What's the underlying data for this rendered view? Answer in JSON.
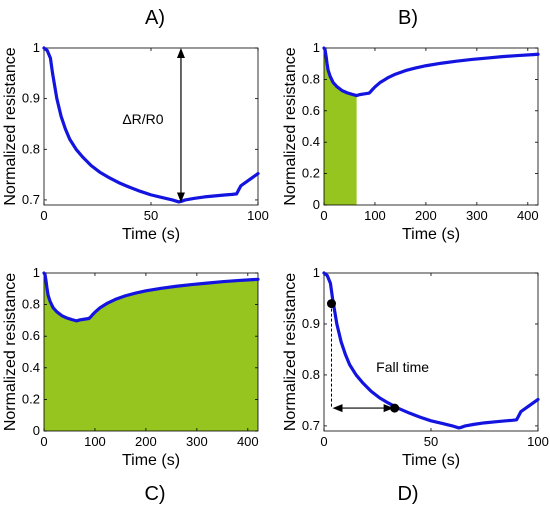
{
  "colors": {
    "curve": "#1414e0",
    "fill": "#97c520",
    "axes": "#000000"
  },
  "chart_data": [
    {
      "panel": "A)",
      "type": "line",
      "xlabel": "Time (s)",
      "ylabel": "Normalized resistance",
      "xlim": [
        0,
        100
      ],
      "ylim": [
        0.69,
        1.0
      ],
      "xticks": [
        0,
        50,
        100
      ],
      "yticks": [
        0.7,
        0.8,
        0.9,
        1
      ],
      "ytick_labels": [
        "0.7",
        "0.8",
        "0.9",
        "1"
      ],
      "x": [
        0,
        1.5,
        3,
        4,
        6,
        8,
        10,
        12,
        15,
        18,
        22,
        26,
        30,
        35,
        40,
        45,
        50,
        55,
        60,
        63,
        64,
        66,
        70,
        75,
        80,
        85,
        88,
        90,
        91,
        92,
        95,
        100
      ],
      "y": [
        1.0,
        0.995,
        0.98,
        0.95,
        0.9,
        0.865,
        0.84,
        0.82,
        0.8,
        0.785,
        0.768,
        0.755,
        0.745,
        0.734,
        0.725,
        0.717,
        0.71,
        0.705,
        0.7,
        0.696,
        0.697,
        0.7,
        0.703,
        0.706,
        0.708,
        0.71,
        0.711,
        0.712,
        0.72,
        0.728,
        0.737,
        0.752
      ],
      "annotation": {
        "text": "ΔR/R0",
        "arrow_x": 64,
        "arrow_y": [
          0.695,
          1.0
        ]
      }
    },
    {
      "panel": "B)",
      "type": "area",
      "xlabel": "Time (s)",
      "ylabel": "Normalized resistance",
      "xlim": [
        0,
        420
      ],
      "ylim": [
        0,
        1.0
      ],
      "xticks": [
        0,
        100,
        200,
        300,
        400
      ],
      "yticks": [
        0,
        0.2,
        0.4,
        0.6,
        0.8,
        1
      ],
      "ytick_labels": [
        "0",
        "0.2",
        "0.4",
        "0.6",
        "0.8",
        "1"
      ],
      "x": [
        0,
        2,
        4,
        6,
        8,
        12,
        18,
        25,
        35,
        45,
        55,
        64,
        70,
        80,
        88,
        91,
        95,
        100,
        110,
        125,
        140,
        160,
        180,
        200,
        230,
        260,
        290,
        320,
        350,
        380,
        410,
        420
      ],
      "y": [
        1.0,
        0.99,
        0.95,
        0.9,
        0.86,
        0.82,
        0.78,
        0.755,
        0.73,
        0.715,
        0.705,
        0.697,
        0.703,
        0.708,
        0.712,
        0.72,
        0.735,
        0.752,
        0.78,
        0.81,
        0.833,
        0.856,
        0.873,
        0.887,
        0.903,
        0.916,
        0.927,
        0.936,
        0.945,
        0.952,
        0.958,
        0.96
      ],
      "fill_range": [
        0,
        64
      ]
    },
    {
      "panel": "C)",
      "type": "area",
      "xlabel": "Time (s)",
      "ylabel": "Normalized resistance",
      "xlim": [
        0,
        420
      ],
      "ylim": [
        0,
        1.0
      ],
      "xticks": [
        0,
        100,
        200,
        300,
        400
      ],
      "yticks": [
        0,
        0.2,
        0.4,
        0.6,
        0.8,
        1
      ],
      "ytick_labels": [
        "0",
        "0.2",
        "0.4",
        "0.6",
        "0.8",
        "1"
      ],
      "x": [
        0,
        2,
        4,
        6,
        8,
        12,
        18,
        25,
        35,
        45,
        55,
        64,
        70,
        80,
        88,
        91,
        95,
        100,
        110,
        125,
        140,
        160,
        180,
        200,
        230,
        260,
        290,
        320,
        350,
        380,
        410,
        420
      ],
      "y": [
        1.0,
        0.99,
        0.95,
        0.9,
        0.86,
        0.82,
        0.78,
        0.755,
        0.73,
        0.715,
        0.705,
        0.697,
        0.703,
        0.708,
        0.712,
        0.72,
        0.735,
        0.752,
        0.78,
        0.81,
        0.833,
        0.856,
        0.873,
        0.887,
        0.903,
        0.916,
        0.927,
        0.936,
        0.945,
        0.952,
        0.958,
        0.96
      ],
      "fill_range": [
        0,
        420
      ]
    },
    {
      "panel": "D)",
      "type": "line",
      "xlabel": "Time (s)",
      "ylabel": "Normalized resistance",
      "xlim": [
        0,
        100
      ],
      "ylim": [
        0.69,
        1.0
      ],
      "xticks": [
        0,
        50,
        100
      ],
      "yticks": [
        0.7,
        0.8,
        0.9,
        1
      ],
      "ytick_labels": [
        "0.7",
        "0.8",
        "0.9",
        "1"
      ],
      "x": [
        0,
        1.5,
        3,
        4,
        6,
        8,
        10,
        12,
        15,
        18,
        22,
        26,
        30,
        35,
        40,
        45,
        50,
        55,
        60,
        63,
        64,
        66,
        70,
        75,
        80,
        85,
        88,
        90,
        91,
        92,
        95,
        100
      ],
      "y": [
        1.0,
        0.995,
        0.98,
        0.95,
        0.9,
        0.865,
        0.84,
        0.82,
        0.8,
        0.785,
        0.768,
        0.755,
        0.745,
        0.734,
        0.725,
        0.717,
        0.71,
        0.705,
        0.7,
        0.696,
        0.697,
        0.7,
        0.703,
        0.706,
        0.708,
        0.71,
        0.711,
        0.712,
        0.72,
        0.728,
        0.737,
        0.752
      ],
      "annotation": {
        "text": "Fall time",
        "points": [
          [
            3.5,
            0.94
          ],
          [
            33,
            0.735
          ]
        ]
      }
    }
  ]
}
